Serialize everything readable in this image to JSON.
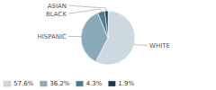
{
  "chart_data": {
    "type": "pie",
    "categories": [
      "WHITE",
      "HISPANIC",
      "BLACK",
      "ASIAN"
    ],
    "values": [
      57.6,
      36.2,
      4.3,
      1.9
    ],
    "value_labels": [
      "57.6%",
      "36.2%",
      "4.3%",
      "1.9%"
    ],
    "colors": [
      "#cdd9e0",
      "#88aab9",
      "#4d7a8e",
      "#1c3a4e"
    ],
    "legend": "lower left"
  }
}
